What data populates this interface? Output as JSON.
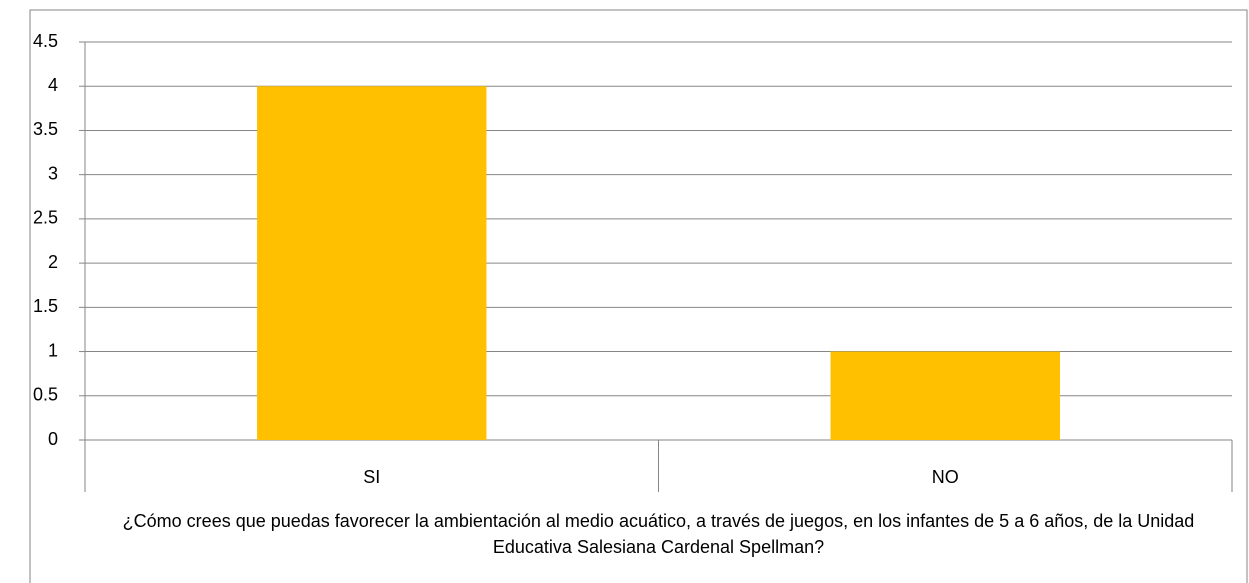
{
  "chart_data": {
    "type": "bar",
    "categories": [
      "SI",
      "NO"
    ],
    "values": [
      4,
      1
    ],
    "color": "#ffc000",
    "ylim": [
      0,
      4.5
    ],
    "yticks": [
      0,
      0.5,
      1,
      1.5,
      2,
      2.5,
      3,
      3.5,
      4,
      4.5
    ],
    "grid": true,
    "x_label": "¿Cómo crees que puedas favorecer la ambientación al medio acuático, a través de juegos, en los infantes de 5 a 6 años, de la Unidad Educativa Salesiana Cardenal Spellman?"
  }
}
